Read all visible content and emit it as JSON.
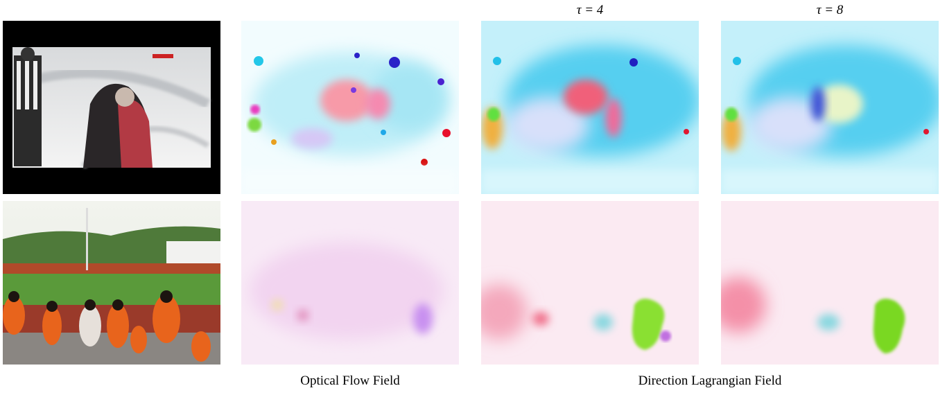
{
  "header": {
    "tau_labels": [
      "τ = 4",
      "τ = 8"
    ]
  },
  "captions": [
    "Optical Flow Field",
    "Direction Lagrangian Field"
  ]
}
